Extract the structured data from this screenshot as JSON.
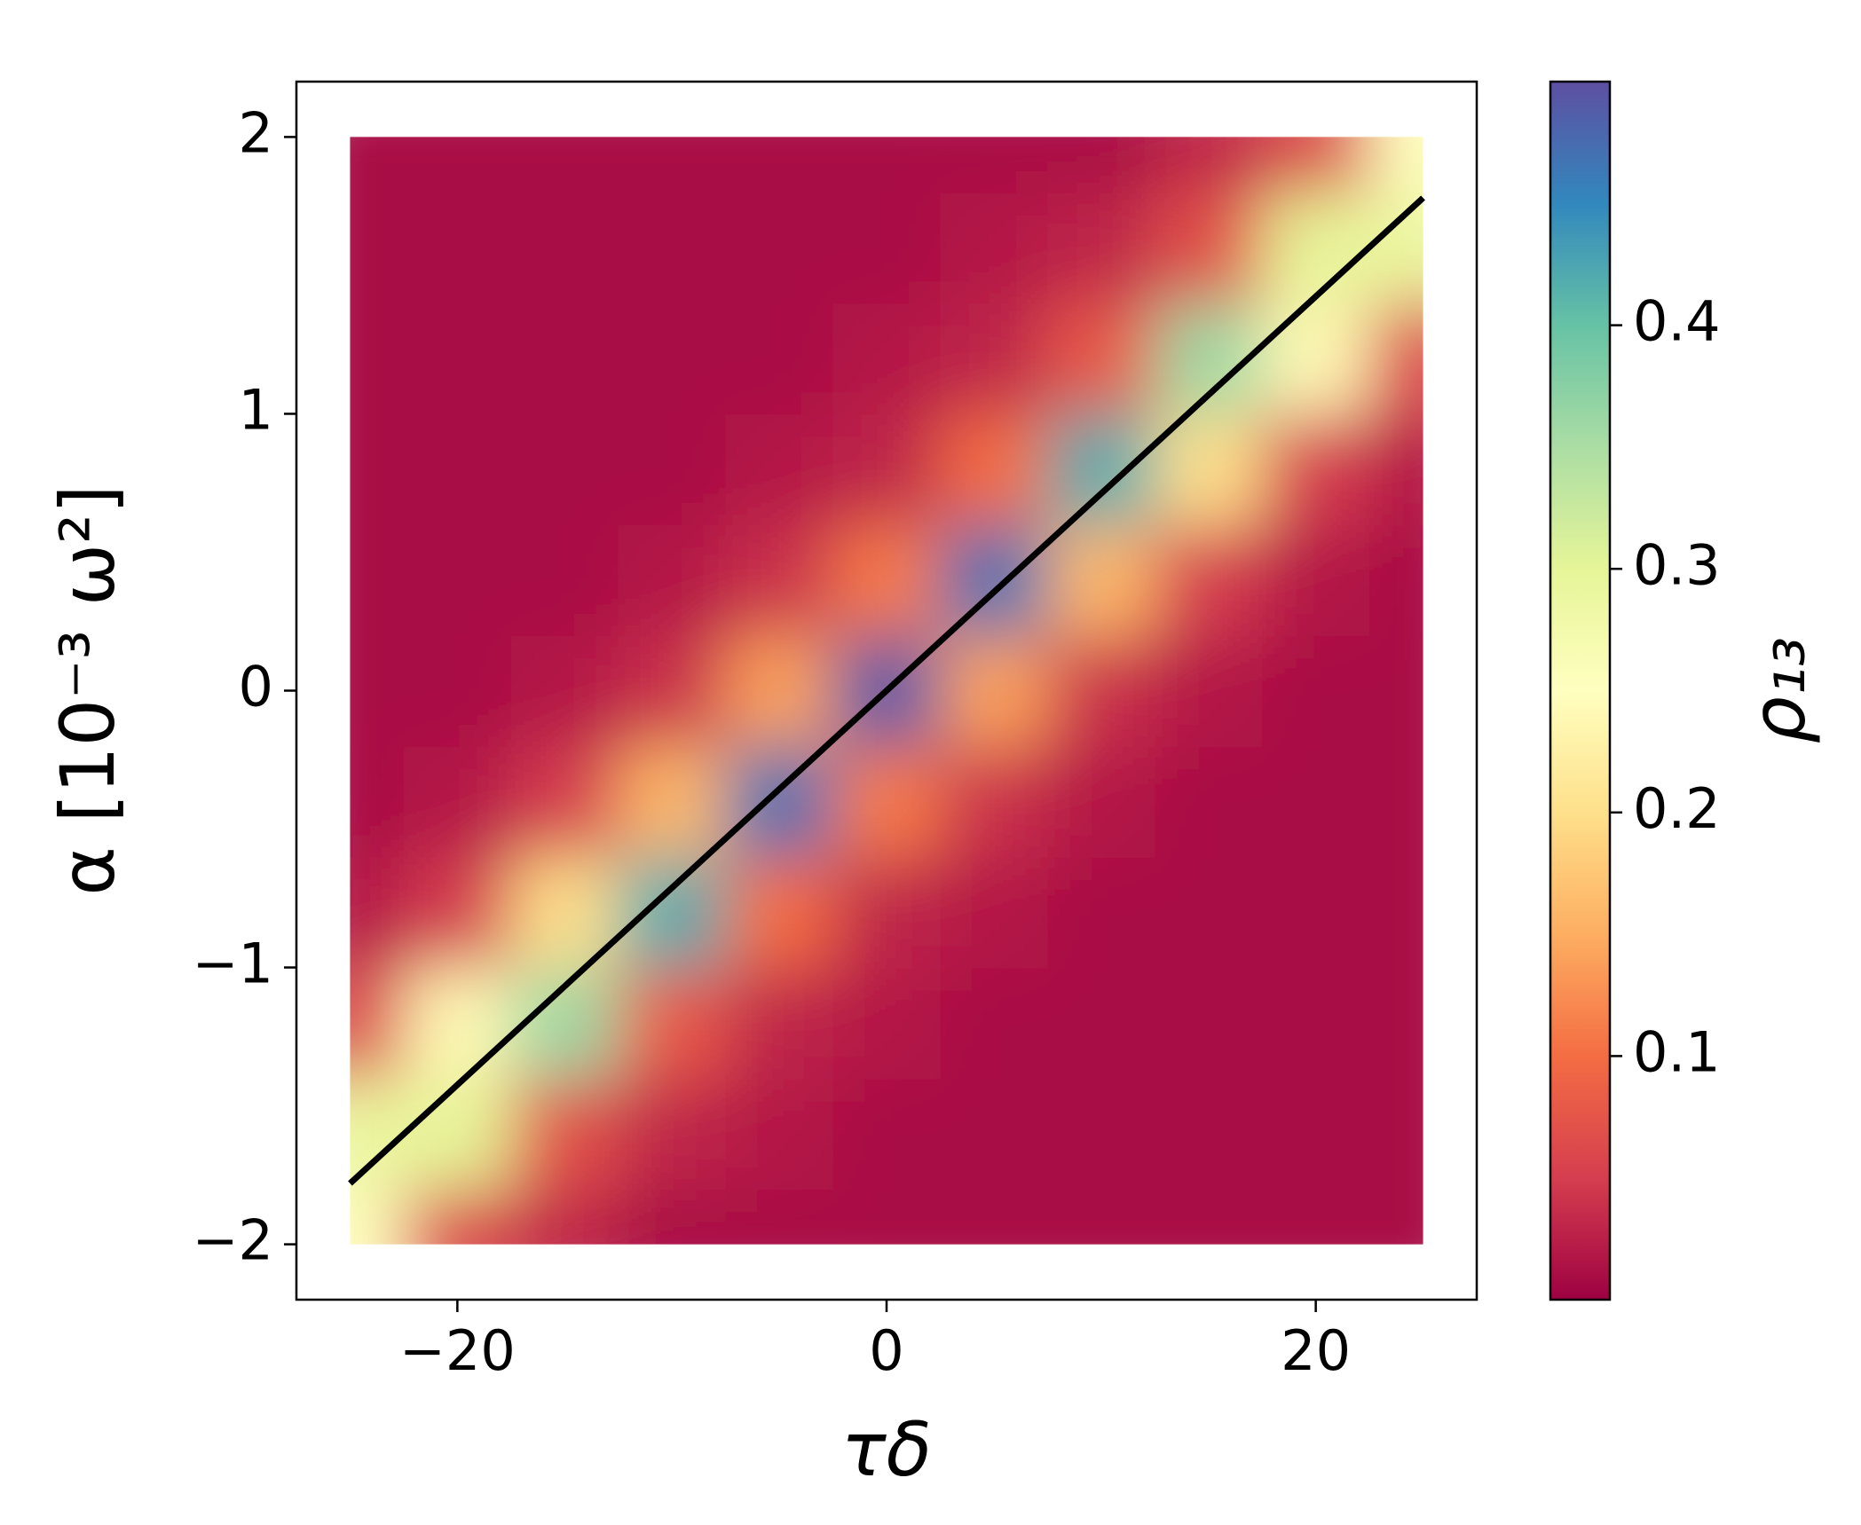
{
  "chart_data": {
    "type": "heatmap",
    "xlabel": "τδ",
    "ylabel": "α [10⁻³ ω²]",
    "colorbar_label": "ρ₁₃",
    "colormap": "Spectral",
    "x": [
      -25,
      -20,
      -15,
      -10,
      -5,
      0,
      5,
      10,
      15,
      20,
      25
    ],
    "y": [
      -2,
      -1.6,
      -1.2,
      -0.8,
      -0.4,
      0,
      0.4,
      0.8,
      1.2,
      1.6,
      2
    ],
    "values": [
      [
        0.25,
        0.06,
        0.03,
        0.01,
        0.01,
        0.01,
        0.01,
        0.01,
        0.01,
        0.01,
        0.01
      ],
      [
        0.29,
        0.3,
        0.07,
        0.03,
        0.02,
        0.01,
        0.01,
        0.01,
        0.01,
        0.01,
        0.01
      ],
      [
        0.06,
        0.24,
        0.36,
        0.08,
        0.03,
        0.02,
        0.01,
        0.01,
        0.01,
        0.01,
        0.01
      ],
      [
        0.02,
        0.05,
        0.2,
        0.42,
        0.1,
        0.03,
        0.02,
        0.01,
        0.01,
        0.01,
        0.01
      ],
      [
        0.01,
        0.02,
        0.05,
        0.16,
        0.47,
        0.11,
        0.04,
        0.02,
        0.01,
        0.01,
        0.01
      ],
      [
        0.01,
        0.01,
        0.02,
        0.04,
        0.14,
        0.49,
        0.14,
        0.04,
        0.02,
        0.01,
        0.01
      ],
      [
        0.01,
        0.01,
        0.01,
        0.02,
        0.04,
        0.11,
        0.47,
        0.16,
        0.05,
        0.02,
        0.01
      ],
      [
        0.01,
        0.01,
        0.01,
        0.01,
        0.02,
        0.03,
        0.1,
        0.42,
        0.2,
        0.05,
        0.02
      ],
      [
        0.01,
        0.01,
        0.01,
        0.01,
        0.01,
        0.02,
        0.03,
        0.08,
        0.36,
        0.24,
        0.06
      ],
      [
        0.01,
        0.01,
        0.01,
        0.01,
        0.01,
        0.01,
        0.02,
        0.03,
        0.07,
        0.3,
        0.29
      ],
      [
        0.01,
        0.01,
        0.01,
        0.01,
        0.01,
        0.01,
        0.01,
        0.01,
        0.03,
        0.06,
        0.25
      ]
    ],
    "line": {
      "x": [
        -25,
        25
      ],
      "y": [
        -1.78,
        1.78
      ],
      "color": "#000000"
    },
    "xlim": [
      -27.5,
      27.5
    ],
    "ylim": [
      -2.2,
      2.2
    ],
    "zlim": [
      0,
      0.5
    ],
    "xticks": [
      {
        "value": -20,
        "label": "−20"
      },
      0,
      20
    ],
    "yticks": [
      {
        "value": -2,
        "label": "−2"
      },
      {
        "value": -1,
        "label": "−1"
      },
      0,
      1,
      2
    ],
    "zticks": [
      0.1,
      0.2,
      0.3,
      0.4
    ]
  }
}
